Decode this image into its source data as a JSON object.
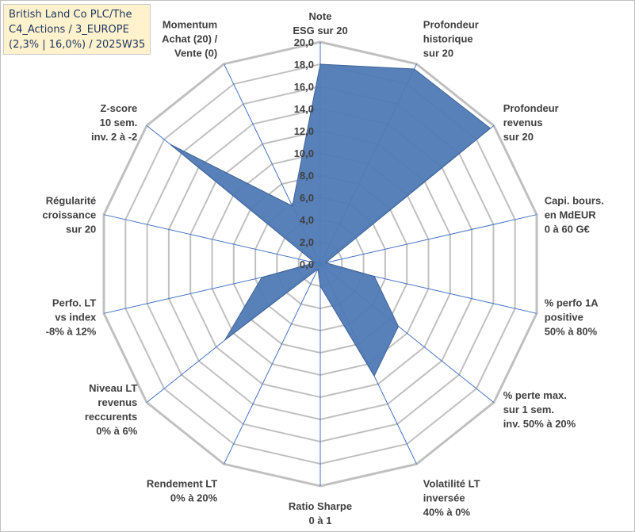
{
  "title_lines": [
    "British Land Co PLC/The",
    "C4_Actions / 3_EUROPE",
    "(2,3% | 16,0%) / 2025W35"
  ],
  "colors": {
    "fill": "#4f7ab5",
    "stroke": "#3e6296",
    "grid": "#c0c0c0",
    "spoke": "#4472c4",
    "title_bg": "#fff2cc",
    "title_text": "#1f3864"
  },
  "chart_data": {
    "type": "radar",
    "title": "British Land Co PLC/The C4_Actions / 3_EUROPE (2,3% | 16,0%) / 2025W35",
    "range": [
      0,
      20
    ],
    "tick_step": 2,
    "tick_labels": [
      "0,0",
      "2,0",
      "4,0",
      "6,0",
      "8,0",
      "10,0",
      "12,0",
      "14,0",
      "16,0",
      "18,0",
      "20,0"
    ],
    "grid": true,
    "axes": [
      {
        "label": [
          "Note",
          "ESG sur 20"
        ],
        "value": 18.0
      },
      {
        "label": [
          "Profondeur",
          "historique",
          "sur 20"
        ],
        "value": 19.5
      },
      {
        "label": [
          "Profondeur",
          "revenus",
          "sur 20"
        ],
        "value": 19.6
      },
      {
        "label": [
          "Capi. bours.",
          "en MdEUR",
          "0 à 60 G€"
        ],
        "value": 0.5
      },
      {
        "label": [
          "% perfo 1A",
          "positive",
          "50% à 80%"
        ],
        "value": 5.0
      },
      {
        "label": [
          "% perte max.",
          "sur 1 sem.",
          "inv. 50% à 20%"
        ],
        "value": 9.0
      },
      {
        "label": [
          "Volatilité LT",
          "inversée",
          "40% à 0%"
        ],
        "value": 11.2
      },
      {
        "label": [
          "Ratio Sharpe",
          "0 à 1"
        ],
        "value": 2.0
      },
      {
        "label": [
          "Rendement LT",
          "0% à 20%"
        ],
        "value": 0.5
      },
      {
        "label": [
          "Niveau LT",
          "revenus",
          "reccurents",
          "0% à 6%"
        ],
        "value": 11.0
      },
      {
        "label": [
          "Perfo. LT",
          "vs index",
          "-8% à 12%"
        ],
        "value": 5.4
      },
      {
        "label": [
          "Régularité",
          "croissance",
          "sur 20"
        ],
        "value": 0.5
      },
      {
        "label": [
          "Z-score",
          "10 sem.",
          "inv. 2 à -2"
        ],
        "value": 17.3
      },
      {
        "label": [
          "Momentum",
          "Achat (20) /",
          "Vente (0)"
        ],
        "value": 5.8
      }
    ]
  }
}
